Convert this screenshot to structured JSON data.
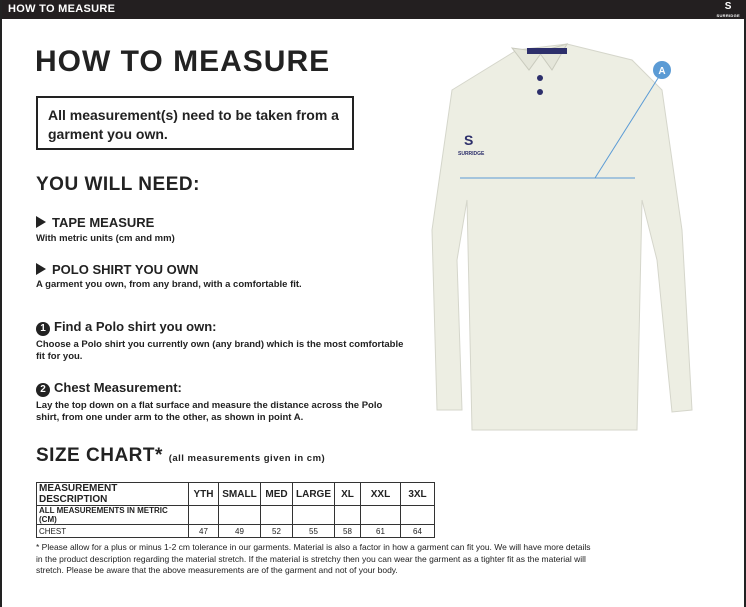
{
  "topbar": {
    "title": "HOW TO MEASURE",
    "logo": "SURRIDGE"
  },
  "title": "HOW TO MEASURE",
  "notice": "All measurement(s) need to be taken from a garment you own.",
  "you_will_need": "YOU WILL NEED:",
  "needs": [
    {
      "label": "TAPE MEASURE",
      "desc": "With metric units (cm and mm)"
    },
    {
      "label": "POLO SHIRT YOU OWN",
      "desc": "A garment you own, from any brand, with a comfortable fit."
    }
  ],
  "steps": [
    {
      "num": "1",
      "title": "Find a Polo shirt you own:",
      "desc": "Choose a Polo shirt you currently own (any brand) which is the most comfortable fit for you."
    },
    {
      "num": "2",
      "title": "Chest Measurement:",
      "desc": "Lay the top down on a flat surface and measure the distance across the Polo shirt, from one under arm to the other, as shown in point A."
    }
  ],
  "size_chart": {
    "title": "SIZE CHART*",
    "note": "(all measurements given in cm)",
    "headers": [
      "MEASUREMENT DESCRIPTION",
      "YTH",
      "SMALL",
      "MED",
      "LARGE",
      "XL",
      "XXL",
      "3XL"
    ],
    "subheader": "ALL MEASUREMENTS IN METRIC (CM)",
    "rows": [
      {
        "label": "CHEST",
        "values": [
          "47",
          "49",
          "52",
          "55",
          "58",
          "61",
          "64"
        ]
      }
    ]
  },
  "footnote": "* Please allow for a plus or minus 1-2 cm tolerance in our garments. Material is also a factor in how a garment can fit you. We will have more details in the product description regarding the material stretch.  If the material is stretchy then you can wear the garment as a tighter fit as the material will stretch.  Please be aware that the above measurements are of the garment and not of your body.",
  "image": {
    "point_label": "A",
    "brand_text": "SURRIDGE",
    "accent": "#5b9bd5"
  }
}
